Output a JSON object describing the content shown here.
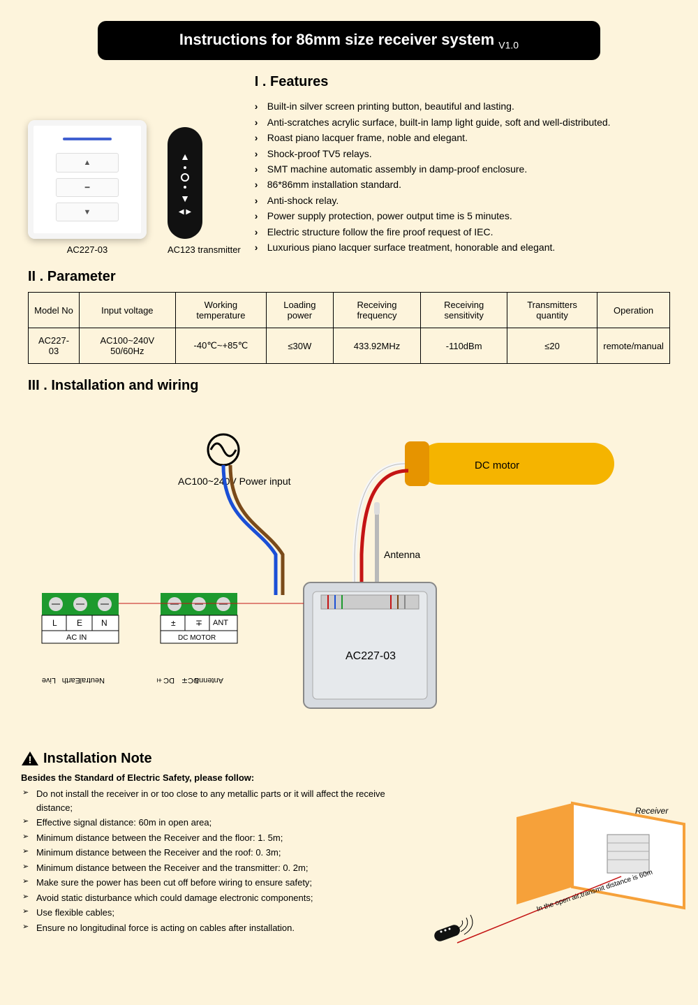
{
  "title": "Instructions for 86mm size receiver system",
  "version": "V1.0",
  "products": {
    "switch_label": "AC227-03",
    "remote_label": "AC123 transmitter"
  },
  "features": {
    "heading": "I . Features",
    "items": [
      "Built-in silver screen printing button, beautiful and lasting.",
      "Anti-scratches acrylic surface, built-in lamp light guide, soft and well-distributed.",
      "Roast piano lacquer frame, noble and elegant.",
      "Shock-proof TV5 relays.",
      "SMT machine automatic assembly in damp-proof enclosure.",
      "86*86mm installation standard.",
      "Anti-shock relay.",
      "Power supply protection, power output time is 5 minutes.",
      "Electric structure follow the fire proof request of IEC.",
      "Luxurious piano lacquer surface treatment, honorable and elegant."
    ]
  },
  "parameter": {
    "heading": "II . Parameter",
    "columns": [
      "Model No",
      "Input voltage",
      "Working temperature",
      "Loading power",
      "Receiving frequency",
      "Receiving sensitivity",
      "Transmitters quantity",
      "Operation"
    ],
    "rows": [
      [
        "AC227-03",
        "AC100~240V 50/60Hz",
        "-40℃~+85℃",
        "≤30W",
        "433.92MHz",
        "-110dBm",
        "≤20",
        "remote/manual"
      ]
    ],
    "border_color": "#000000",
    "header_bg": "#fdf4dc"
  },
  "wiring": {
    "heading": "III . Installation and wiring",
    "power_label": "AC100~240V Power input",
    "motor_label": "DC motor",
    "antenna_label": "Antenna",
    "box_label": "AC227-03",
    "acin_block": {
      "terminals": [
        "L",
        "E",
        "N"
      ],
      "label": "AC IN",
      "pins": [
        "Live",
        "Earth",
        "Neutral"
      ]
    },
    "dcmotor_block": {
      "terminals": [
        "±",
        "∓",
        "ANT"
      ],
      "label": "DC MOTOR",
      "pins": [
        "DC±",
        "DC∓",
        "Antenna"
      ]
    },
    "colors": {
      "terminal_green": "#1d9a2e",
      "screw_grey": "#d9d9d9",
      "motor_yellow": "#f5b400",
      "motor_cap": "#e69400",
      "box_grey": "#d7dbe0",
      "wire_red": "#c41414",
      "wire_blue": "#1b4fd6",
      "wire_brown": "#7a4a1a",
      "wire_white": "#f6f6f6",
      "antenna": "#b9b9b9"
    }
  },
  "note": {
    "heading": "Installation Note",
    "subheading": "Besides the Standard of Electric Safety, please follow:",
    "items": [
      "Do not install the receiver in or too close to any metallic parts or it will affect the receive distance;",
      "Effective signal distance: 60m in open area;",
      "Minimum distance between the Receiver and the floor: 1. 5m;",
      "Minimum distance between the Receiver and the roof: 0. 3m;",
      "Minimum distance between the Receiver and the transmitter: 0. 2m;",
      "Make sure the power has been cut off before wiring to ensure safety;",
      "Avoid static disturbance which could damage electronic components;",
      "Use flexible cables;",
      "Ensure no longitudinal force is acting on cables after installation."
    ],
    "diagram": {
      "receiver_label": "Receiver",
      "distance_label": "In the open air,transmit distance is 60m",
      "wall_color": "#f6a13a",
      "shutter_color": "#e6e6e6"
    }
  }
}
